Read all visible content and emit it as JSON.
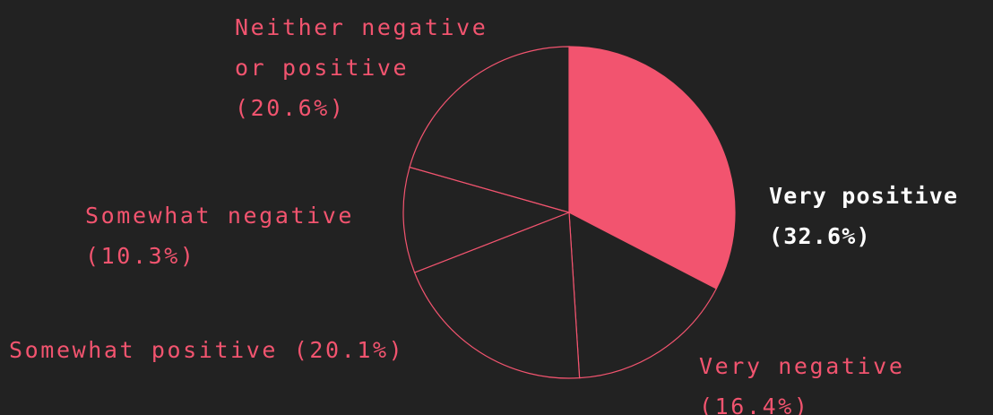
{
  "chart_data": {
    "type": "pie",
    "categories": [
      "Very positive",
      "Very negative",
      "Somewhat positive",
      "Somewhat negative",
      "Neither negative or positive"
    ],
    "values": [
      32.6,
      16.4,
      20.1,
      10.3,
      20.6
    ],
    "value_labels": [
      "(32.6%)",
      "(16.4%)",
      "(20.1%)",
      "(10.3%)",
      "(20.6%)"
    ],
    "colors": [
      "#f2546f",
      "#222222",
      "#222222",
      "#222222",
      "#222222"
    ],
    "stroke": "#f2546f",
    "label_colors": [
      "#ffffff",
      "#f2546f",
      "#f2546f",
      "#f2546f",
      "#f2546f"
    ]
  }
}
